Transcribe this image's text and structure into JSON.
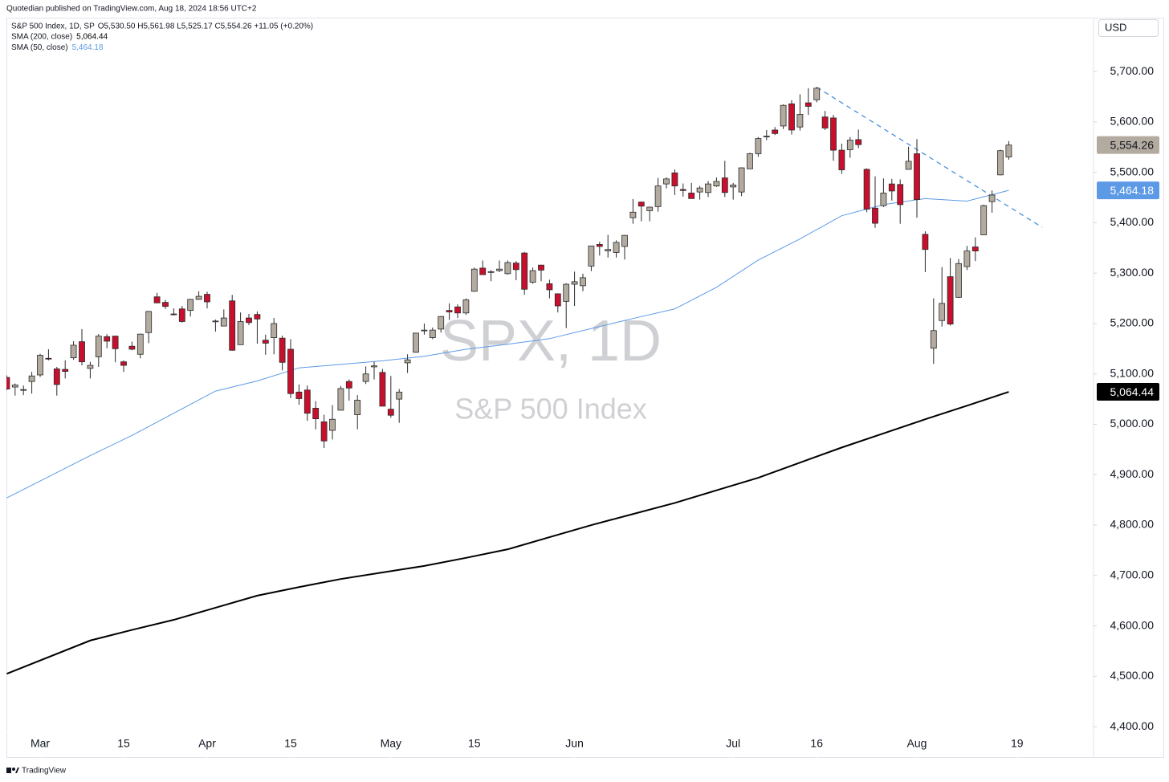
{
  "chart_data": {
    "type": "candlestick",
    "attribution": "Quotedian published on TradingView.com, Aug 18, 2024 18:56 UTC+2",
    "title": "S&P 500 Index, 1D, SP",
    "ohlc_summary": "O5,530.50 H5,561.98 L5,525.17 C5,554.26 +11.05 (+0.20%)",
    "watermark": [
      "SPX, 1D",
      "S&P 500 Index"
    ],
    "currency": "USD",
    "footer": "TradingView",
    "last_close_label": "5,554.26",
    "up_color": "#b3ab9f",
    "down_color": "#c8102e",
    "grid": false,
    "x": [
      "2024-02-26",
      "2024-02-27",
      "2024-02-28",
      "2024-02-29",
      "2024-03-01",
      "2024-03-04",
      "2024-03-05",
      "2024-03-06",
      "2024-03-07",
      "2024-03-08",
      "2024-03-11",
      "2024-03-12",
      "2024-03-13",
      "2024-03-14",
      "2024-03-15",
      "2024-03-18",
      "2024-03-19",
      "2024-03-20",
      "2024-03-21",
      "2024-03-22",
      "2024-03-25",
      "2024-03-26",
      "2024-03-27",
      "2024-03-28",
      "2024-04-01",
      "2024-04-02",
      "2024-04-03",
      "2024-04-04",
      "2024-04-05",
      "2024-04-08",
      "2024-04-09",
      "2024-04-10",
      "2024-04-11",
      "2024-04-12",
      "2024-04-15",
      "2024-04-16",
      "2024-04-17",
      "2024-04-18",
      "2024-04-19",
      "2024-04-22",
      "2024-04-23",
      "2024-04-24",
      "2024-04-25",
      "2024-04-26",
      "2024-04-29",
      "2024-04-30",
      "2024-05-01",
      "2024-05-02",
      "2024-05-03",
      "2024-05-06",
      "2024-05-07",
      "2024-05-08",
      "2024-05-09",
      "2024-05-10",
      "2024-05-13",
      "2024-05-14",
      "2024-05-15",
      "2024-05-16",
      "2024-05-17",
      "2024-05-20",
      "2024-05-21",
      "2024-05-22",
      "2024-05-23",
      "2024-05-24",
      "2024-05-28",
      "2024-05-29",
      "2024-05-30",
      "2024-05-31",
      "2024-06-03",
      "2024-06-04",
      "2024-06-05",
      "2024-06-06",
      "2024-06-07",
      "2024-06-10",
      "2024-06-11",
      "2024-06-12",
      "2024-06-13",
      "2024-06-14",
      "2024-06-17",
      "2024-06-18",
      "2024-06-20",
      "2024-06-21",
      "2024-06-24",
      "2024-06-25",
      "2024-06-26",
      "2024-06-27",
      "2024-06-28",
      "2024-07-01",
      "2024-07-02",
      "2024-07-03",
      "2024-07-05",
      "2024-07-08",
      "2024-07-09",
      "2024-07-10",
      "2024-07-11",
      "2024-07-12",
      "2024-07-15",
      "2024-07-16",
      "2024-07-17",
      "2024-07-18",
      "2024-07-19",
      "2024-07-22",
      "2024-07-23",
      "2024-07-24",
      "2024-07-25",
      "2024-07-26",
      "2024-07-29",
      "2024-07-30",
      "2024-07-31",
      "2024-08-01",
      "2024-08-02",
      "2024-08-05",
      "2024-08-06",
      "2024-08-07",
      "2024-08-08",
      "2024-08-09",
      "2024-08-12",
      "2024-08-13",
      "2024-08-14",
      "2024-08-15",
      "2024-08-16"
    ],
    "open": [
      5093,
      5074,
      5068,
      5085,
      5098,
      5131,
      5110,
      5109,
      5132,
      5164,
      5111,
      5134,
      5174,
      5175,
      5124,
      5155,
      5139,
      5182,
      5253,
      5242,
      5219,
      5229,
      5226,
      5248,
      5258,
      5204,
      5195,
      5245,
      5158,
      5211,
      5218,
      5167,
      5172,
      5171,
      5149,
      5064,
      5068,
      5032,
      5005,
      4988,
      5028,
      5085,
      5019,
      5085,
      5114,
      5103,
      5030,
      5050,
      5122,
      5143,
      5187,
      5172,
      5189,
      5226,
      5233,
      5221,
      5264,
      5310,
      5303,
      5305,
      5299,
      5320,
      5340,
      5282,
      5316,
      5279,
      5259,
      5244,
      5278,
      5275,
      5314,
      5357,
      5344,
      5341,
      5353,
      5410,
      5441,
      5424,
      5432,
      5477,
      5499,
      5466,
      5459,
      5461,
      5460,
      5473,
      5489,
      5471,
      5461,
      5507,
      5537,
      5572,
      5584,
      5592,
      5636,
      5590,
      5638,
      5644,
      5610,
      5608,
      5544,
      5545,
      5565,
      5506,
      5429,
      5434,
      5477,
      5476,
      5506,
      5537,
      5377,
      5151,
      5206,
      5293,
      5252,
      5313,
      5352,
      5376,
      5442,
      5495,
      5530.5
    ],
    "high": [
      5097,
      5081,
      5077,
      5104,
      5140,
      5149,
      5114,
      5127,
      5165,
      5189,
      5124,
      5179,
      5179,
      5176,
      5127,
      5164,
      5180,
      5225,
      5261,
      5247,
      5230,
      5235,
      5249,
      5264,
      5263,
      5208,
      5228,
      5257,
      5222,
      5219,
      5224,
      5178,
      5211,
      5176,
      5169,
      5079,
      5077,
      5046,
      5019,
      5038,
      5076,
      5089,
      5058,
      5115,
      5124,
      5110,
      5096,
      5070,
      5139,
      5181,
      5200,
      5192,
      5215,
      5240,
      5238,
      5250,
      5311,
      5325,
      5306,
      5325,
      5325,
      5324,
      5342,
      5311,
      5316,
      5287,
      5260,
      5280,
      5303,
      5299,
      5354,
      5362,
      5376,
      5365,
      5376,
      5447,
      5442,
      5432,
      5489,
      5490,
      5506,
      5478,
      5479,
      5473,
      5483,
      5490,
      5523,
      5479,
      5510,
      5539,
      5570,
      5584,
      5590,
      5635,
      5643,
      5655,
      5667,
      5669,
      5622,
      5614,
      5557,
      5570,
      5585,
      5508,
      5492,
      5488,
      5487,
      5486,
      5551,
      5566,
      5383,
      5250,
      5312,
      5330,
      5328,
      5354,
      5371,
      5436,
      5464,
      5545,
      5561.98
    ],
    "low": [
      5068,
      5057,
      5058,
      5061,
      5094,
      5127,
      5057,
      5091,
      5128,
      5117,
      5091,
      5114,
      5151,
      5123,
      5104,
      5147,
      5131,
      5161,
      5241,
      5229,
      5216,
      5202,
      5214,
      5247,
      5230,
      5184,
      5195,
      5146,
      5158,
      5197,
      5160,
      5138,
      5139,
      5107,
      5052,
      5039,
      5007,
      4990,
      4953,
      4970,
      5028,
      5047,
      4990,
      5080,
      5089,
      5036,
      5013,
      5003,
      5102,
      5142,
      5178,
      5169,
      5182,
      5207,
      5211,
      5217,
      5263,
      5297,
      5284,
      5302,
      5297,
      5286,
      5257,
      5279,
      5284,
      5250,
      5222,
      5191,
      5235,
      5264,
      5304,
      5335,
      5331,
      5331,
      5327,
      5398,
      5403,
      5403,
      5422,
      5468,
      5455,
      5452,
      5448,
      5446,
      5451,
      5471,
      5451,
      5446,
      5453,
      5507,
      5531,
      5564,
      5574,
      5586,
      5575,
      5583,
      5614,
      5639,
      5584,
      5523,
      5497,
      5529,
      5548,
      5421,
      5390,
      5431,
      5444,
      5398,
      5506,
      5410,
      5302,
      5120,
      5194,
      5196,
      5251,
      5306,
      5324,
      5376,
      5420,
      5494,
      5525.17
    ],
    "close": [
      5070,
      5078,
      5069,
      5096,
      5137,
      5130,
      5079,
      5105,
      5157,
      5124,
      5117,
      5175,
      5165,
      5150,
      5117,
      5149,
      5179,
      5224,
      5241,
      5234,
      5218,
      5204,
      5248,
      5254,
      5243,
      5205,
      5211,
      5147,
      5204,
      5202,
      5209,
      5161,
      5200,
      5123,
      5061,
      5051,
      5022,
      5011,
      4967,
      5010,
      5071,
      5072,
      5048,
      5100,
      5116,
      5036,
      5018,
      5064,
      5128,
      5181,
      5187,
      5187,
      5214,
      5223,
      5221,
      5247,
      5308,
      5297,
      5303,
      5308,
      5321,
      5307,
      5268,
      5305,
      5306,
      5267,
      5235,
      5278,
      5283,
      5291,
      5354,
      5353,
      5347,
      5361,
      5375,
      5421,
      5433,
      5431,
      5473,
      5487,
      5473,
      5464,
      5448,
      5469,
      5477,
      5482,
      5460,
      5475,
      5509,
      5537,
      5567,
      5572,
      5577,
      5633,
      5584,
      5615,
      5631,
      5667,
      5588,
      5544,
      5505,
      5564,
      5555,
      5427,
      5399,
      5459,
      5463,
      5436,
      5522,
      5446,
      5347,
      5186,
      5240,
      5199,
      5319,
      5344,
      5344,
      5434,
      5455,
      5543,
      5554.26
    ],
    "series": [
      {
        "name": "SMA (200, close)",
        "color": "#000000",
        "last_label": "5,064.44",
        "x": [
          "2024-02-26",
          "2024-03-11",
          "2024-03-18",
          "2024-03-25",
          "2024-04-02",
          "2024-04-09",
          "2024-04-16",
          "2024-04-23",
          "2024-04-30",
          "2024-05-07",
          "2024-05-14",
          "2024-05-21",
          "2024-05-29",
          "2024-06-05",
          "2024-06-12",
          "2024-06-20",
          "2024-06-27",
          "2024-07-05",
          "2024-07-12",
          "2024-07-19",
          "2024-07-26",
          "2024-08-02",
          "2024-08-09",
          "2024-08-16"
        ],
        "values": [
          4505,
          4571,
          4592,
          4612,
          4636,
          4660,
          4677,
          4693,
          4706,
          4719,
          4735,
          4752,
          4776,
          4800,
          4822,
          4844,
          4869,
          4894,
          4924,
          4954,
          4982,
          5010,
          5037,
          5064.44
        ]
      },
      {
        "name": "SMA (50, close)",
        "color": "#5d9ae6",
        "last_label": "5,464.18",
        "x": [
          "2024-02-26",
          "2024-03-11",
          "2024-03-18",
          "2024-03-25",
          "2024-04-02",
          "2024-04-09",
          "2024-04-16",
          "2024-04-23",
          "2024-04-30",
          "2024-05-07",
          "2024-05-14",
          "2024-05-21",
          "2024-05-29",
          "2024-06-05",
          "2024-06-12",
          "2024-06-20",
          "2024-06-27",
          "2024-07-05",
          "2024-07-12",
          "2024-07-19",
          "2024-07-26",
          "2024-08-02",
          "2024-08-09",
          "2024-08-16"
        ],
        "values": [
          4854,
          4938,
          4978,
          5022,
          5066,
          5086,
          5112,
          5119,
          5126,
          5135,
          5149,
          5159,
          5170,
          5190,
          5210,
          5229,
          5272,
          5326,
          5368,
          5414,
          5436,
          5448,
          5443,
          5464.18
        ]
      }
    ],
    "trendline": {
      "color": "#4a8fd8",
      "x": [
        "2024-07-16",
        "2024-08-22"
      ],
      "values": [
        5669,
        5391
      ]
    },
    "ylim": [
      4338,
      5807
    ],
    "yticks": [
      {
        "value": 4400,
        "label": "4,400.00"
      },
      {
        "value": 4500,
        "label": "4,500.00"
      },
      {
        "value": 4600,
        "label": "4,600.00"
      },
      {
        "value": 4700,
        "label": "4,700.00"
      },
      {
        "value": 4800,
        "label": "4,800.00"
      },
      {
        "value": 4900,
        "label": "4,900.00"
      },
      {
        "value": 5000,
        "label": "5,000.00"
      },
      {
        "value": 5100,
        "label": "5,100.00"
      },
      {
        "value": 5200,
        "label": "5,200.00"
      },
      {
        "value": 5300,
        "label": "5,300.00"
      },
      {
        "value": 5400,
        "label": "5,400.00"
      },
      {
        "value": 5500,
        "label": "5,500.00"
      },
      {
        "value": 5600,
        "label": "5,600.00"
      },
      {
        "value": 5700,
        "label": "5,700.00"
      }
    ],
    "xticks": [
      {
        "value": "2024-03-01",
        "label": "Mar"
      },
      {
        "value": "2024-03-15",
        "label": "15"
      },
      {
        "value": "2024-04-01",
        "label": "Apr"
      },
      {
        "value": "2024-04-15",
        "label": "15"
      },
      {
        "value": "2024-05-01",
        "label": "May"
      },
      {
        "value": "2024-05-15",
        "label": "15"
      },
      {
        "value": "2024-06-03",
        "label": "Jun"
      },
      {
        "value": "2024-07-01",
        "label": "Jul"
      },
      {
        "value": "2024-07-16",
        "label": "16"
      },
      {
        "value": "2024-08-01",
        "label": "Aug"
      },
      {
        "value": "2024-08-19",
        "label": "19"
      }
    ]
  }
}
